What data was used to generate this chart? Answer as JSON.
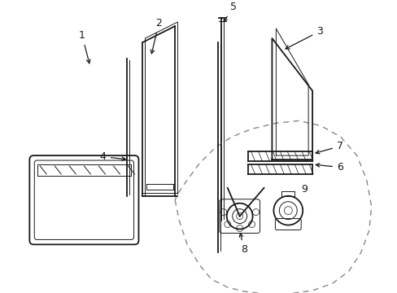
{
  "background_color": "#ffffff",
  "line_color": "#1a1a1a",
  "dash_color": "#555555",
  "lw_main": 1.3,
  "lw_thin": 0.7,
  "lw_inner": 0.5,
  "font_size": 9
}
